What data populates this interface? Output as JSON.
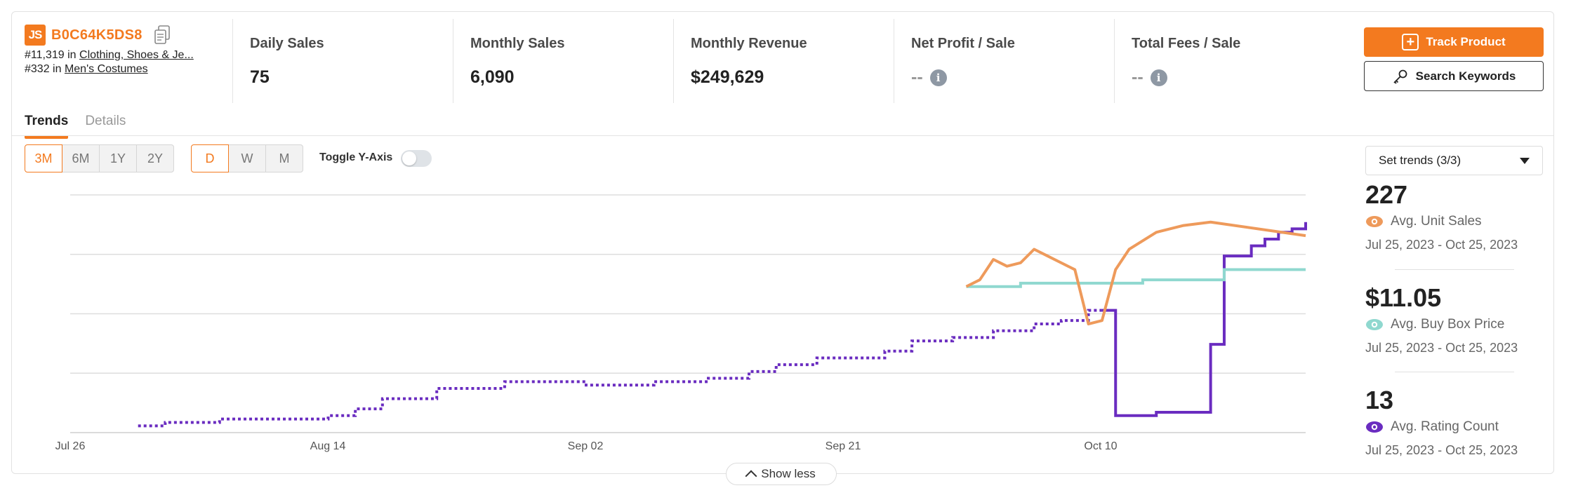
{
  "product": {
    "logo": "JS",
    "asin": "B0C64K5DS8",
    "ranks": [
      {
        "rank": "#11,319",
        "in": "in",
        "category": "Clothing, Shoes & Je..."
      },
      {
        "rank": "#332",
        "in": "in",
        "category": "Men's Costumes"
      }
    ]
  },
  "stats": [
    {
      "label": "Daily Sales",
      "value": "75"
    },
    {
      "label": "Monthly Sales",
      "value": "6,090"
    },
    {
      "label": "Monthly Revenue",
      "value": "$249,629"
    },
    {
      "label": "Net Profit / Sale",
      "value": "--"
    },
    {
      "label": "Total Fees / Sale",
      "value": "--"
    }
  ],
  "actions": {
    "track": "Track Product",
    "search": "Search Keywords"
  },
  "tabs": [
    {
      "label": "Trends",
      "active": true
    },
    {
      "label": "Details",
      "active": false
    }
  ],
  "range_buttons": [
    {
      "label": "3M",
      "selected": true
    },
    {
      "label": "6M"
    },
    {
      "label": "1Y"
    },
    {
      "label": "2Y"
    }
  ],
  "interval_buttons": [
    {
      "label": "D",
      "selected": true
    },
    {
      "label": "W"
    },
    {
      "label": "M"
    }
  ],
  "toggle_y_axis": {
    "label": "Toggle Y-Axis",
    "on": false
  },
  "trend_select": {
    "label": "Set trends (3/3)"
  },
  "metrics": [
    {
      "value": "227",
      "label": "Avg. Unit Sales",
      "range": "Jul 25, 2023 - Oct 25, 2023",
      "color": "#ee9a5b"
    },
    {
      "value": "$11.05",
      "label": "Avg. Buy Box Price",
      "range": "Jul 25, 2023 - Oct 25, 2023",
      "color": "#8fd8cf"
    },
    {
      "value": "13",
      "label": "Avg. Rating Count",
      "range": "Jul 25, 2023 - Oct 25, 2023",
      "color": "#6a2cc0"
    }
  ],
  "show_less": "Show less",
  "colors": {
    "accent": "#f37a1f",
    "sales": "#ee9a5b",
    "price": "#8fd8cf",
    "rating": "#6a2cc0"
  },
  "chart_data": {
    "type": "line",
    "x_tick_labels": [
      "Jul 26",
      "Aug 14",
      "Sep 02",
      "Sep 21",
      "Oct 10"
    ],
    "x_range": [
      "2023-07-26",
      "2023-10-25"
    ],
    "grid": true,
    "y_axis_labels_shown": false,
    "series": [
      {
        "key": "rating",
        "color": "#6a2cc0",
        "points": [
          [
            "2023-07-31",
            1
          ],
          [
            "2023-08-02",
            1.5
          ],
          [
            "2023-08-06",
            2
          ],
          [
            "2023-08-11",
            2
          ],
          [
            "2023-08-14",
            2.5
          ],
          [
            "2023-08-16",
            3.5
          ],
          [
            "2023-08-18",
            5
          ],
          [
            "2023-08-22",
            6.5
          ],
          [
            "2023-08-25",
            6.5
          ],
          [
            "2023-08-27",
            7.5
          ],
          [
            "2023-08-31",
            7.5
          ],
          [
            "2023-09-02",
            7
          ],
          [
            "2023-09-07",
            7.5
          ],
          [
            "2023-09-11",
            8
          ],
          [
            "2023-09-14",
            9
          ],
          [
            "2023-09-16",
            10
          ],
          [
            "2023-09-19",
            11
          ],
          [
            "2023-09-24",
            12
          ],
          [
            "2023-09-26",
            13.5
          ],
          [
            "2023-09-29",
            14
          ],
          [
            "2023-10-02",
            15
          ],
          [
            "2023-10-05",
            16
          ],
          [
            "2023-10-07",
            16.5
          ],
          [
            "2023-10-09",
            18
          ],
          [
            "2023-10-10",
            18
          ],
          [
            "2023-10-11",
            2.5
          ],
          [
            "2023-10-14",
            3
          ],
          [
            "2023-10-17",
            3
          ],
          [
            "2023-10-18",
            13
          ],
          [
            "2023-10-19",
            26
          ],
          [
            "2023-10-21",
            27.5
          ],
          [
            "2023-10-22",
            28.5
          ],
          [
            "2023-10-23",
            29.5
          ],
          [
            "2023-10-24",
            30
          ],
          [
            "2023-10-25",
            31
          ]
        ]
      },
      {
        "key": "price",
        "color": "#8fd8cf",
        "points": [
          [
            "2023-09-30",
            21.5
          ],
          [
            "2023-10-04",
            21.5
          ],
          [
            "2023-10-04",
            22
          ],
          [
            "2023-10-10",
            22
          ],
          [
            "2023-10-13",
            22.5
          ],
          [
            "2023-10-18",
            22.5
          ],
          [
            "2023-10-19",
            24
          ],
          [
            "2023-10-25",
            24
          ]
        ]
      },
      {
        "key": "sales",
        "color": "#ee9a5b",
        "points": [
          [
            "2023-09-30",
            21.5
          ],
          [
            "2023-10-01",
            22.5
          ],
          [
            "2023-10-02",
            25.5
          ],
          [
            "2023-10-03",
            24.5
          ],
          [
            "2023-10-04",
            25
          ],
          [
            "2023-10-05",
            27
          ],
          [
            "2023-10-06",
            26
          ],
          [
            "2023-10-07",
            25
          ],
          [
            "2023-10-08",
            24
          ],
          [
            "2023-10-09",
            16
          ],
          [
            "2023-10-10",
            16.5
          ],
          [
            "2023-10-11",
            24
          ],
          [
            "2023-10-12",
            27
          ],
          [
            "2023-10-14",
            29.5
          ],
          [
            "2023-10-16",
            30.5
          ],
          [
            "2023-10-18",
            31
          ],
          [
            "2023-10-25",
            29
          ]
        ]
      }
    ]
  }
}
